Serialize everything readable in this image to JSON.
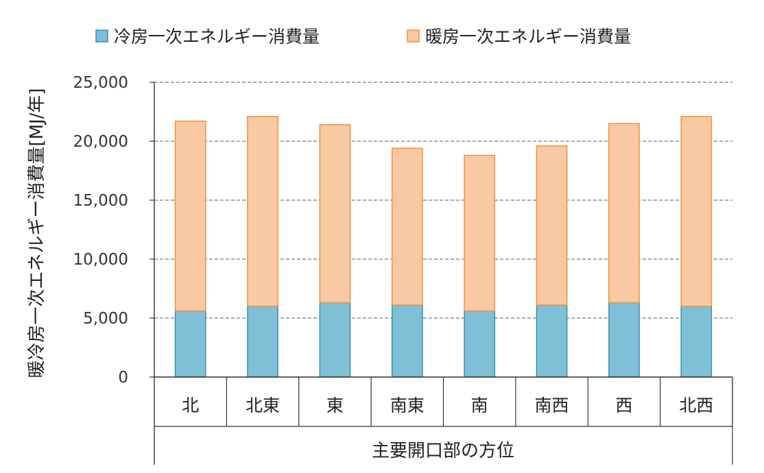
{
  "chart_data": {
    "type": "bar",
    "stacked": true,
    "categories": [
      "北",
      "北東",
      "東",
      "南東",
      "南",
      "南西",
      "西",
      "北西"
    ],
    "series": [
      {
        "name": "冷房一次エネルギー消費量",
        "values": [
          5600,
          6000,
          6300,
          6100,
          5600,
          6100,
          6300,
          6000
        ]
      },
      {
        "name": "暖房一次エネルギー消費量",
        "values": [
          16100,
          16100,
          15100,
          13300,
          13200,
          13500,
          15200,
          16100
        ]
      }
    ],
    "xlabel": "主要開口部の方位",
    "ylabel": "暖冷房一次エネルギー消費量[MJ/年]",
    "ylim": [
      0,
      25000
    ],
    "yticks": [
      0,
      5000,
      10000,
      15000,
      20000,
      25000
    ],
    "ytick_labels": [
      "0",
      "5,000",
      "10,000",
      "15,000",
      "20,000",
      "25,000"
    ],
    "grid": true,
    "legend_position": "top",
    "colors": {
      "cooling_fill": "#7fc0d6",
      "cooling_stroke": "#3a8db3",
      "heating_fill": "#f8c9a2",
      "heating_stroke": "#ee9240",
      "grid": "#555555",
      "axis": "#333333"
    }
  }
}
